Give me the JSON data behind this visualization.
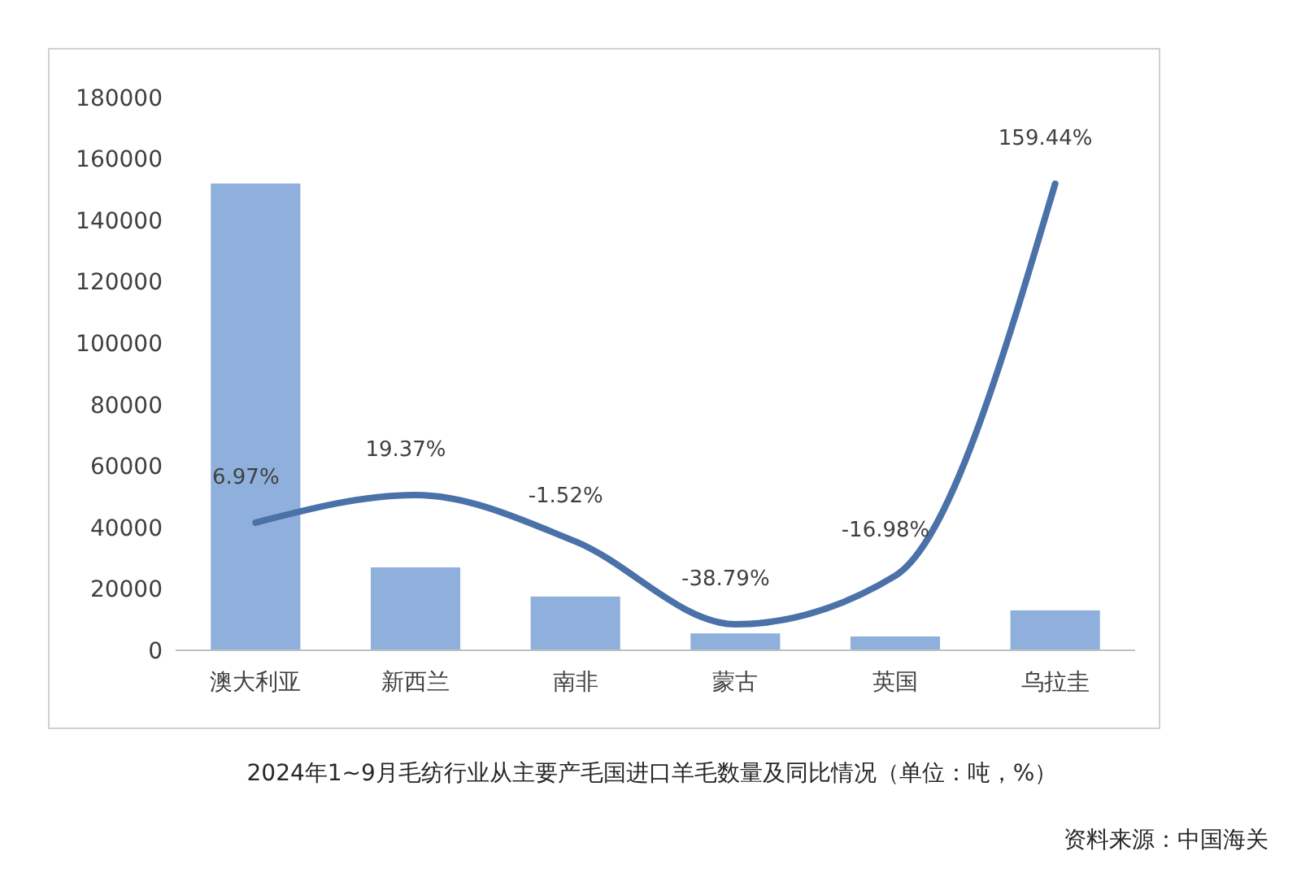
{
  "chart_data": {
    "type": "bar",
    "title": "2024年1~9月毛纺行业从主要产毛国进口羊毛数量及同比情况（单位：吨，%）",
    "categories": [
      "澳大利亚",
      "新西兰",
      "南非",
      "蒙古",
      "英国",
      "乌拉圭"
    ],
    "series": [
      {
        "color": "#8fb0dc",
        "values": [
          152000,
          27000,
          17500,
          5500,
          4500,
          13000
        ]
      },
      {
        "type": "line",
        "axis": "y2",
        "color": "#4a72a8",
        "values": [
          6.97,
          19.37,
          -1.52,
          -38.79,
          -16.98,
          159.44
        ],
        "value_labels": [
          "6.97%",
          "19.37%",
          "-1.52%",
          "-38.79%",
          "-16.98%",
          "159.44%"
        ]
      }
    ],
    "ylim": [
      0,
      180000
    ],
    "yticks": [
      0,
      20000,
      40000,
      60000,
      80000,
      100000,
      120000,
      140000,
      160000,
      180000
    ],
    "tick_labels": "xy",
    "grid": false,
    "marker": "none",
    "line_style": "solid",
    "annotations": [
      "资料来源：中国海关"
    ]
  }
}
